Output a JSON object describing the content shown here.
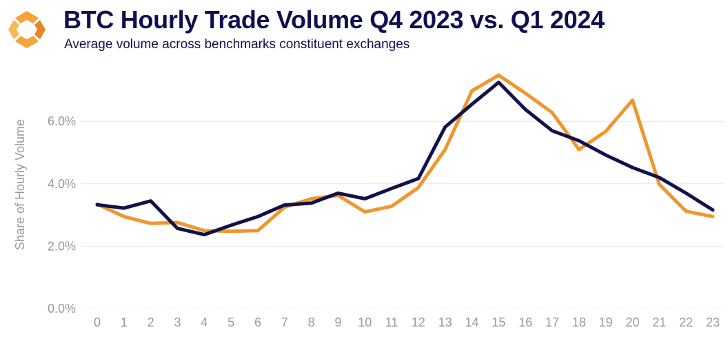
{
  "header": {
    "title": "BTC Hourly Trade Volume Q4 2023 vs. Q1 2024",
    "subtitle": "Average volume across benchmarks constituent exchanges"
  },
  "colors": {
    "q4_2023": "#f0962e",
    "q1_2024": "#12124a",
    "grid": "#e6e6e6",
    "tick": "#9a9a9a"
  },
  "chart_data": {
    "type": "line",
    "title": "BTC Hourly Trade Volume Q4 2023 vs. Q1 2024",
    "subtitle": "Average volume across benchmarks constituent exchanges",
    "xlabel": "",
    "ylabel": "Share of Hourly Volume",
    "x": [
      0,
      1,
      2,
      3,
      4,
      5,
      6,
      7,
      8,
      9,
      10,
      11,
      12,
      13,
      14,
      15,
      16,
      17,
      18,
      19,
      20,
      21,
      22,
      23
    ],
    "x_tick_labels": [
      "0",
      "1",
      "2",
      "3",
      "4",
      "5",
      "6",
      "7",
      "8",
      "9",
      "10",
      "11",
      "12",
      "13",
      "14",
      "15",
      "16",
      "17",
      "18",
      "19",
      "20",
      "21",
      "22",
      "23"
    ],
    "ylim": [
      0,
      7.8
    ],
    "y_ticks": [
      0,
      2,
      4,
      6
    ],
    "y_tick_labels": [
      "0.0%",
      "2.0%",
      "4.0%",
      "6.0%"
    ],
    "grid": true,
    "legend": "none",
    "series": [
      {
        "name": "Q4 2023",
        "color": "#f0962e",
        "values": [
          3.35,
          2.95,
          2.73,
          2.76,
          2.5,
          2.48,
          2.5,
          3.25,
          3.52,
          3.63,
          3.1,
          3.28,
          3.88,
          5.1,
          6.98,
          7.48,
          6.9,
          6.28,
          5.1,
          5.68,
          6.68,
          3.98,
          3.12,
          2.95
        ]
      },
      {
        "name": "Q1 2024",
        "color": "#12124a",
        "values": [
          3.33,
          3.22,
          3.45,
          2.57,
          2.37,
          2.67,
          2.95,
          3.32,
          3.38,
          3.7,
          3.52,
          3.85,
          4.17,
          5.82,
          6.55,
          7.25,
          6.38,
          5.7,
          5.38,
          4.92,
          4.52,
          4.2,
          3.7,
          3.16
        ]
      }
    ]
  }
}
